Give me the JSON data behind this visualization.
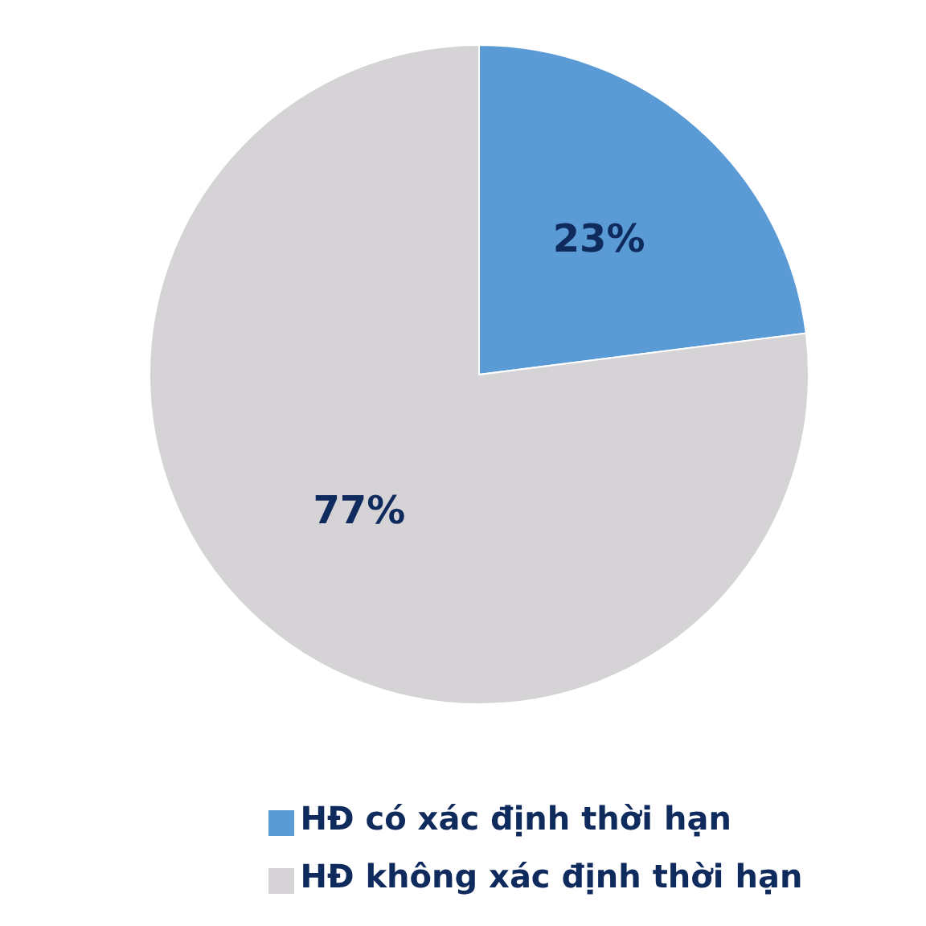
{
  "chart_data": {
    "type": "pie",
    "categories": [
      "HĐ có xác định thời hạn",
      "HĐ không xác định thời hạn"
    ],
    "values": [
      23,
      77
    ],
    "colors": [
      "#5b9bd5",
      "#d6d3d6"
    ],
    "value_labels": [
      "23%",
      "77%"
    ],
    "legend": "bottom"
  }
}
